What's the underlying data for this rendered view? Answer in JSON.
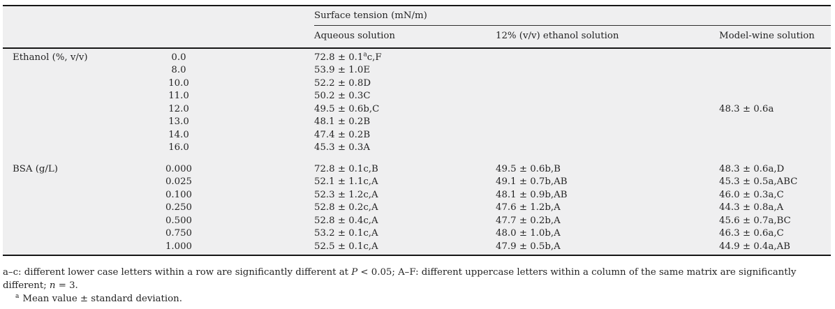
{
  "table": {
    "title": "Surface tension (mN/m)",
    "columns": {
      "aqueous": "Aqueous solution",
      "ethanol12": "12% (v/v) ethanol solution",
      "wine": "Model-wine solution"
    },
    "ethanol": {
      "label": "Ethanol (%, v/v)",
      "rows": [
        {
          "conc": "0.0",
          "aqueous_main": "72.8 ± 0.1",
          "aqueous_sup": "a",
          "aqueous_tail": "c,F",
          "ethanol12": "",
          "wine": ""
        },
        {
          "conc": "8.0",
          "aqueous": "53.9 ± 1.0E",
          "ethanol12": "",
          "wine": ""
        },
        {
          "conc": "10.0",
          "aqueous": "52.2 ± 0.8D",
          "ethanol12": "",
          "wine": ""
        },
        {
          "conc": "11.0",
          "aqueous": "50.2 ± 0.3C",
          "ethanol12": "",
          "wine": ""
        },
        {
          "conc": "12.0",
          "aqueous": "49.5 ± 0.6b,C",
          "ethanol12": "",
          "wine": "48.3 ± 0.6a"
        },
        {
          "conc": "13.0",
          "aqueous": "48.1 ± 0.2B",
          "ethanol12": "",
          "wine": ""
        },
        {
          "conc": "14.0",
          "aqueous": "47.4 ± 0.2B",
          "ethanol12": "",
          "wine": ""
        },
        {
          "conc": "16.0",
          "aqueous": "45.3 ± 0.3A",
          "ethanol12": "",
          "wine": ""
        }
      ]
    },
    "bsa": {
      "label": "BSA (g/L)",
      "rows": [
        {
          "conc": "0.000",
          "aqueous": "72.8 ± 0.1c,B",
          "ethanol12": "49.5 ± 0.6b,B",
          "wine": "48.3 ± 0.6a,D"
        },
        {
          "conc": "0.025",
          "aqueous": "52.1 ± 1.1c,A",
          "ethanol12": "49.1 ± 0.7b,AB",
          "wine": "45.3 ± 0.5a,ABC"
        },
        {
          "conc": "0.100",
          "aqueous": "52.3 ± 1.2c,A",
          "ethanol12": "48.1 ± 0.9b,AB",
          "wine": "46.0 ± 0.3a,C"
        },
        {
          "conc": "0.250",
          "aqueous": "52.8 ± 0.2c,A",
          "ethanol12": "47.6 ± 1.2b,A",
          "wine": "44.3 ± 0.8a,A"
        },
        {
          "conc": "0.500",
          "aqueous": "52.8 ± 0.4c,A",
          "ethanol12": "47.7 ± 0.2b,A",
          "wine": "45.6 ± 0.7a,BC"
        },
        {
          "conc": "0.750",
          "aqueous": "53.2 ± 0.1c,A",
          "ethanol12": "48.0 ± 1.0b,A",
          "wine": "46.3 ± 0.6a,C"
        },
        {
          "conc": "1.000",
          "aqueous": "52.5 ± 0.1c,A",
          "ethanol12": "47.9 ± 0.5b,A",
          "wine": "44.9 ± 0.4a,AB"
        }
      ]
    }
  },
  "footnotes": {
    "line1_pre": "a–c: different lower case letters within a row are significantly different at ",
    "p_italic": "P",
    "line1_mid": " < 0.05; A–F: different uppercase letters within a column of the same matrix are significantly different; ",
    "n_italic": "n",
    "line1_post": " = 3.",
    "note_a_sup": "a",
    "note_a_text": "Mean value ± standard deviation."
  },
  "colors": {
    "table_background": "#efeff0",
    "text": "#232323",
    "rule": "#161616"
  }
}
